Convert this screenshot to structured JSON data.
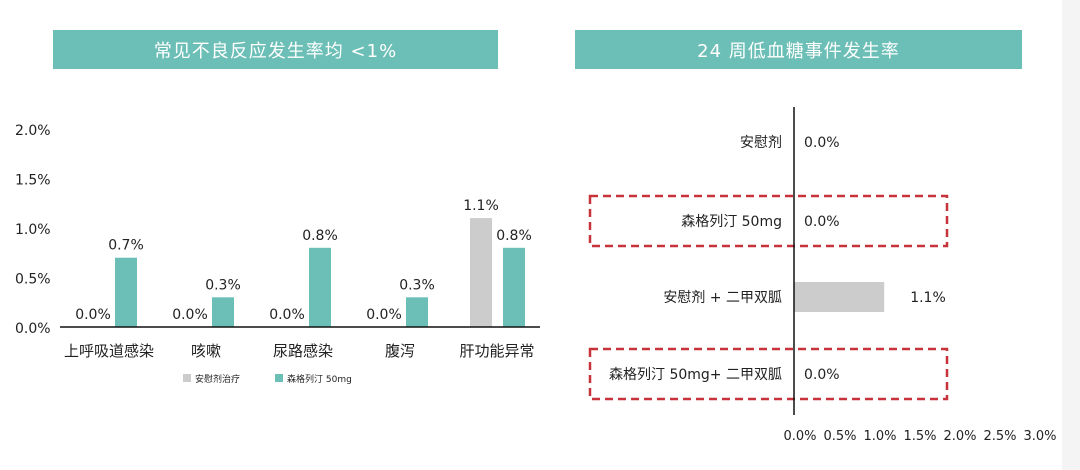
{
  "chart_data": [
    {
      "type": "bar",
      "title": "常见不良反应发生率均 <1%",
      "categories": [
        "上呼吸道感染",
        "咳嗽",
        "尿路感染",
        "腹泻",
        "肝功能异常"
      ],
      "series": [
        {
          "name": "安慰剂治疗",
          "color": "#cccccc",
          "values": [
            0.0,
            0.0,
            0.0,
            0.0,
            1.1
          ]
        },
        {
          "name": "森格列汀 50mg",
          "color": "#6cbfb6",
          "values": [
            0.7,
            0.3,
            0.8,
            0.3,
            0.8
          ]
        }
      ],
      "data_labels": [
        [
          "0.0%",
          "0.0%",
          "0.0%",
          "0.0%",
          "1.1%"
        ],
        [
          "0.7%",
          "0.3%",
          "0.8%",
          "0.3%",
          "0.8%"
        ]
      ],
      "ylim": [
        0,
        2.0
      ],
      "yticks": [
        "0.0%",
        "0.5%",
        "1.0%",
        "1.5%",
        "2.0%"
      ],
      "legend": "bottom"
    },
    {
      "type": "bar",
      "orientation": "horizontal",
      "title": "24 周低血糖事件发生率",
      "categories": [
        "安慰剂",
        "森格列汀 50mg",
        "安慰剂 + 二甲双胍",
        "森格列汀 50mg+ 二甲双胍"
      ],
      "values": [
        0.0,
        0.0,
        1.1,
        0.0
      ],
      "data_labels": [
        "0.0%",
        "0.0%",
        "1.1%",
        "0.0%"
      ],
      "highlighted": [
        false,
        true,
        false,
        true
      ],
      "bar_color": "#cccccc",
      "highlight_color": "#c8323a",
      "xlim": [
        0,
        3.0
      ],
      "xticks": [
        "0.0%",
        "0.5%",
        "1.0%",
        "1.5%",
        "2.0%",
        "2.5%",
        "3.0%"
      ]
    }
  ]
}
